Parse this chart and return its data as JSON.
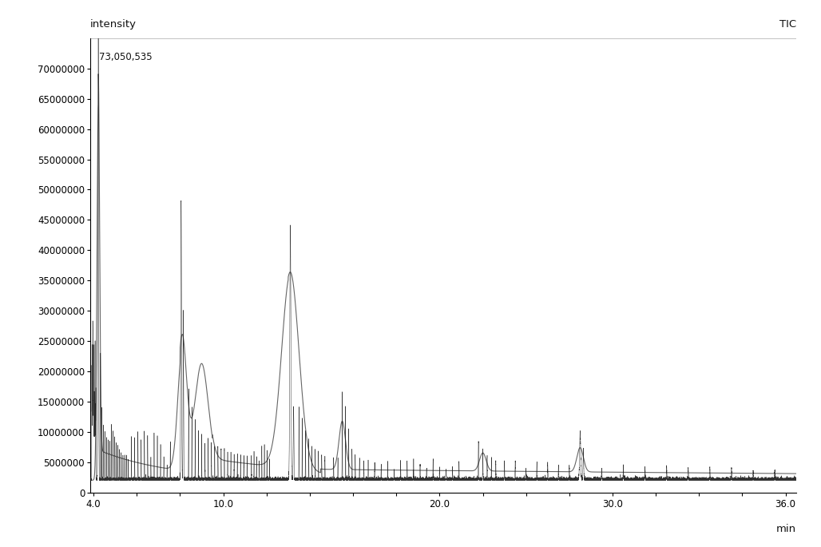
{
  "title_left": "intensity",
  "title_right": "TIC",
  "xlabel": "min",
  "annotation": "73,050,535",
  "xmin": 3.85,
  "xmax": 36.5,
  "ymin": 0,
  "ymax": 75000000,
  "yticks": [
    0,
    5000000,
    10000000,
    15000000,
    20000000,
    25000000,
    30000000,
    35000000,
    40000000,
    45000000,
    50000000,
    55000000,
    60000000,
    65000000,
    70000000
  ],
  "xticks": [
    4.0,
    6.0,
    8.0,
    10.0,
    12.0,
    14.0,
    16.0,
    18.0,
    20.0,
    22.0,
    24.0,
    26.0,
    28.0,
    30.0,
    32.0,
    34.0,
    36.0
  ],
  "xtick_labels": [
    "4.0",
    "",
    "",
    "10.0",
    "",
    "",
    "",
    "",
    "20.0",
    "",
    "",
    "",
    "30.0",
    "",
    "",
    "",
    "36.0"
  ],
  "background_color": "#ffffff",
  "line_color": "#1a1a1a",
  "smooth_color": "#555555",
  "figsize": [
    10.28,
    6.85
  ],
  "dpi": 100
}
